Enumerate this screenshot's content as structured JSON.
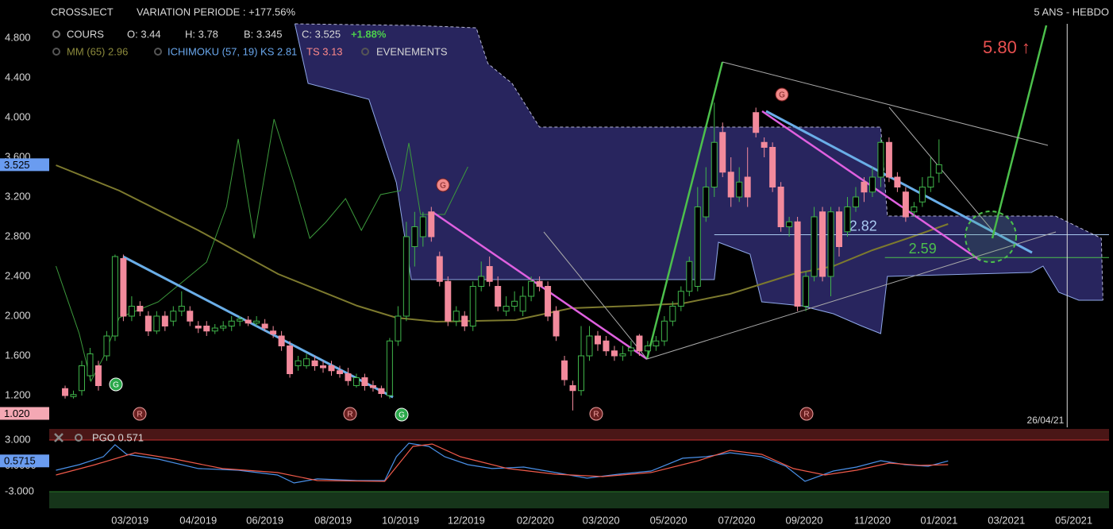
{
  "header": {
    "symbol": "CROSSJECT",
    "variation": "VARIATION PERIODE : +177.56%",
    "period": "5 ANS - HEBDO"
  },
  "legend": {
    "cours": "COURS",
    "open": "O: 3.44",
    "high": "H: 3.78",
    "low": "B: 3.345",
    "close": "C: 3.525",
    "change": "+1.88%",
    "mm": "MM (65) 2.96",
    "ichimoku": "ICHIMOKU (57, 19) KS 2.81",
    "ts": "TS 3.13",
    "events": "EVENEMENTS"
  },
  "chart_data": [
    {
      "type": "candlestick",
      "up_color": "#3fb44a",
      "down_color": "#f28a9c",
      "xlim": [
        -1.91,
        125.43
      ],
      "ylim": [
        0.88,
        5.184
      ],
      "xticks": [
        {
          "value": 7.8,
          "label": "03/2019"
        },
        {
          "value": 16.0,
          "label": "04/2019"
        },
        {
          "value": 24.0,
          "label": "06/2019"
        },
        {
          "value": 32.2,
          "label": "08/2019"
        },
        {
          "value": 40.3,
          "label": "10/2019"
        },
        {
          "value": 48.2,
          "label": "12/2019"
        },
        {
          "value": 56.5,
          "label": "02/2020"
        },
        {
          "value": 64.4,
          "label": "03/2020"
        },
        {
          "value": 72.5,
          "label": "05/2020"
        },
        {
          "value": 80.7,
          "label": "07/2020"
        },
        {
          "value": 88.8,
          "label": "09/2020"
        },
        {
          "value": 97.0,
          "label": "11/2020"
        },
        {
          "value": 105.0,
          "label": "01/2021"
        },
        {
          "value": 113.1,
          "label": "03/2021"
        },
        {
          "value": 121.2,
          "label": "05/2021"
        }
      ],
      "yticks": [
        {
          "value": 1.2,
          "label": "1.200"
        },
        {
          "value": 1.6,
          "label": "1.600"
        },
        {
          "value": 2.0,
          "label": "2.000"
        },
        {
          "value": 2.4,
          "label": "2.400"
        },
        {
          "value": 2.8,
          "label": "2.800"
        },
        {
          "value": 3.2,
          "label": "3.200"
        },
        {
          "value": 3.6,
          "label": "3.600"
        },
        {
          "value": 4.0,
          "label": "4.000"
        },
        {
          "value": 4.4,
          "label": "4.400"
        },
        {
          "value": 4.8,
          "label": "4.800"
        }
      ],
      "x": [
        0,
        1,
        2,
        3,
        4,
        5,
        6,
        7,
        8,
        9,
        10,
        11,
        12,
        13,
        14,
        15,
        16,
        17,
        18,
        19,
        20,
        21,
        22,
        23,
        24,
        25,
        26,
        27,
        28,
        29,
        30,
        31,
        32,
        33,
        34,
        35,
        36,
        37,
        38,
        39,
        40,
        41,
        42,
        43,
        44,
        45,
        46,
        47,
        48,
        49,
        50,
        51,
        52,
        53,
        54,
        55,
        56,
        57,
        58,
        59,
        60,
        61,
        62,
        63,
        64,
        65,
        66,
        67,
        68,
        69,
        70,
        71,
        72,
        73,
        74,
        75,
        76,
        77,
        78,
        79,
        80,
        81,
        82,
        83,
        84,
        85,
        86,
        87,
        88,
        89,
        90,
        91,
        92,
        93,
        94,
        95,
        96,
        97,
        98,
        99,
        100,
        101,
        102,
        103,
        104,
        105
      ],
      "open": [
        1.27,
        1.19,
        1.25,
        1.4,
        1.5,
        1.6,
        1.8,
        2.58,
        2.0,
        2.1,
        2.0,
        1.85,
        2.0,
        1.95,
        2.05,
        2.05,
        1.9,
        1.9,
        1.85,
        1.88,
        1.9,
        1.95,
        1.96,
        1.93,
        1.92,
        1.85,
        1.8,
        1.7,
        1.5,
        1.5,
        1.55,
        1.5,
        1.5,
        1.45,
        1.42,
        1.3,
        1.38,
        1.3,
        1.27,
        1.2,
        1.75,
        2.0,
        2.7,
        2.8,
        3.05,
        2.6,
        2.35,
        1.95,
        2.0,
        1.9,
        2.3,
        2.5,
        2.3,
        2.05,
        2.1,
        2.05,
        2.2,
        2.35,
        2.3,
        2.05,
        1.55,
        1.3,
        1.25,
        1.6,
        1.8,
        1.75,
        1.65,
        1.6,
        1.65,
        1.8,
        1.65,
        1.7,
        1.75,
        1.95,
        2.1,
        2.25,
        2.3,
        3.0,
        3.3,
        3.85,
        3.45,
        3.2,
        3.4,
        4.05,
        3.75,
        3.7,
        3.3,
        2.9,
        2.95,
        2.1,
        2.4,
        3.05,
        2.4,
        3.05,
        2.85,
        3.1,
        3.35,
        3.25,
        3.4,
        3.75,
        3.4,
        3.25,
        3.05,
        3.15,
        3.3,
        3.44
      ],
      "high": [
        1.3,
        1.25,
        1.55,
        1.68,
        1.55,
        1.85,
        2.62,
        2.62,
        2.2,
        2.15,
        2.05,
        2.05,
        2.05,
        2.1,
        2.25,
        2.1,
        1.95,
        1.95,
        1.92,
        1.95,
        2.0,
        2.0,
        2.0,
        2.0,
        1.97,
        1.9,
        1.85,
        1.75,
        1.6,
        1.62,
        1.6,
        1.55,
        1.55,
        1.5,
        1.48,
        1.42,
        1.42,
        1.35,
        1.3,
        1.78,
        2.1,
        2.95,
        3.05,
        3.05,
        3.1,
        2.65,
        2.4,
        2.1,
        2.05,
        2.35,
        2.55,
        2.6,
        2.4,
        2.2,
        2.25,
        2.3,
        2.4,
        2.4,
        2.35,
        2.1,
        1.6,
        1.35,
        1.9,
        1.9,
        1.85,
        1.8,
        1.7,
        1.7,
        1.75,
        1.82,
        1.75,
        1.8,
        2.0,
        2.15,
        2.3,
        2.6,
        3.3,
        3.5,
        4.15,
        3.95,
        3.6,
        3.5,
        3.7,
        4.1,
        3.8,
        3.75,
        3.35,
        3.0,
        3.0,
        2.45,
        3.1,
        3.1,
        3.1,
        3.1,
        3.2,
        3.3,
        3.4,
        3.5,
        3.8,
        3.8,
        3.45,
        3.3,
        3.15,
        3.4,
        3.6,
        3.78
      ],
      "low": [
        1.17,
        1.17,
        1.2,
        1.35,
        1.25,
        1.55,
        1.75,
        1.95,
        1.95,
        2.0,
        1.8,
        1.82,
        1.85,
        1.9,
        2.0,
        1.9,
        1.83,
        1.8,
        1.82,
        1.85,
        1.85,
        1.9,
        1.9,
        1.9,
        1.85,
        1.78,
        1.65,
        1.38,
        1.45,
        1.47,
        1.45,
        1.43,
        1.4,
        1.38,
        1.3,
        1.28,
        1.25,
        1.24,
        1.18,
        1.17,
        1.7,
        1.95,
        2.5,
        2.7,
        2.75,
        2.3,
        1.9,
        1.9,
        1.85,
        1.85,
        2.25,
        2.3,
        2.05,
        2.0,
        2.05,
        2.0,
        2.15,
        2.25,
        1.95,
        1.75,
        1.3,
        1.05,
        1.2,
        1.55,
        1.65,
        1.6,
        1.55,
        1.55,
        1.6,
        1.6,
        1.6,
        1.65,
        1.7,
        1.9,
        2.05,
        2.2,
        2.25,
        2.95,
        3.2,
        3.4,
        3.1,
        3.15,
        3.1,
        3.8,
        3.6,
        3.25,
        2.85,
        2.8,
        2.05,
        2.05,
        2.35,
        2.35,
        2.2,
        2.6,
        2.8,
        3.05,
        3.15,
        3.2,
        3.3,
        3.35,
        3.25,
        2.95,
        3.0,
        3.1,
        3.25,
        3.345
      ],
      "close": [
        1.2,
        1.21,
        1.5,
        1.62,
        1.3,
        1.8,
        2.6,
        2.0,
        2.1,
        2.05,
        1.85,
        2.0,
        1.9,
        2.05,
        2.1,
        1.95,
        1.88,
        1.85,
        1.88,
        1.9,
        1.95,
        1.97,
        1.93,
        1.95,
        1.88,
        1.82,
        1.7,
        1.42,
        1.55,
        1.57,
        1.5,
        1.48,
        1.45,
        1.42,
        1.35,
        1.38,
        1.3,
        1.28,
        1.22,
        1.75,
        2.0,
        2.8,
        2.9,
        3.0,
        2.8,
        2.35,
        1.95,
        2.05,
        1.9,
        2.3,
        2.4,
        2.35,
        2.1,
        2.1,
        2.15,
        2.2,
        2.35,
        2.3,
        2.0,
        1.8,
        1.36,
        1.25,
        1.6,
        1.8,
        1.72,
        1.65,
        1.6,
        1.62,
        1.68,
        1.65,
        1.7,
        1.75,
        1.95,
        2.1,
        2.25,
        2.55,
        3.1,
        3.3,
        3.75,
        3.45,
        3.2,
        3.35,
        3.2,
        3.85,
        3.7,
        3.3,
        2.9,
        2.95,
        2.1,
        2.4,
        3.0,
        2.4,
        3.05,
        2.7,
        3.1,
        3.2,
        3.25,
        3.4,
        3.75,
        3.4,
        3.3,
        3.0,
        3.1,
        3.3,
        3.4,
        3.525
      ],
      "cloud": {
        "color": "#2f2c6e",
        "upper": {
          "color": "#b8b8d8",
          "x": [
            27.6,
            41.8,
            49.4,
            50.8,
            53.7,
            57.0,
            98.0,
            98.8,
            119.0,
            124.5,
            124.7
          ],
          "values": [
            4.944,
            4.928,
            4.904,
            4.544,
            4.344,
            3.904,
            3.904,
            3.008,
            3.008,
            2.784,
            2.16
          ]
        },
        "lower": {
          "color": "#8fa8e8",
          "x": [
            27.6,
            29.2,
            36.5,
            39.8,
            41.6,
            78.0,
            78.5,
            82.3,
            83.7,
            88.5,
            92.3,
            95.6,
            98.0,
            98.8,
            116.1,
            117.5,
            119.4,
            121.8,
            124.7
          ],
          "values": [
            4.944,
            4.344,
            4.184,
            3.344,
            2.368,
            2.368,
            2.744,
            2.624,
            2.144,
            2.104,
            2.024,
            1.904,
            1.824,
            2.4,
            2.44,
            2.504,
            2.24,
            2.16,
            2.16
          ]
        }
      },
      "overlays": [
        {
          "color": "#7d7a2e",
          "x": [
            -1.1,
            6.5,
            16.0,
            25.6,
            35.1,
            39.8,
            44.6,
            54.1,
            60.8,
            68.4,
            74.2,
            79.9,
            87.5,
            92.3,
            97.0,
            101.8,
            106.1
          ],
          "values": [
            3.52,
            3.264,
            2.864,
            2.424,
            2.104,
            1.984,
            1.944,
            1.96,
            2.08,
            2.104,
            2.128,
            2.224,
            2.424,
            2.504,
            2.664,
            2.8,
            2.928
          ]
        },
        {
          "color": "#3c9a3c",
          "x": [
            -1.1,
            1.7,
            3.1,
            4.6,
            6.5,
            11.2,
            17.0,
            19.4,
            20.8,
            22.7,
            25.1,
            27.5,
            29.4,
            31.3,
            33.7,
            35.6,
            37.9,
            40.3,
            41.3,
            42.7,
            45.6,
            48.4
          ],
          "values": [
            2.504,
            1.824,
            1.344,
            1.584,
            1.984,
            2.144,
            2.544,
            3.104,
            3.784,
            2.784,
            3.984,
            3.344,
            2.784,
            2.944,
            3.184,
            2.864,
            3.224,
            3.264,
            3.744,
            3.024,
            3.024,
            3.504
          ]
        }
      ],
      "levels": [
        {
          "value": 2.82,
          "x_start": 78.0,
          "color": "#a8c8f0"
        },
        {
          "value": 2.59,
          "x_start": 98.5,
          "color": "#4cc04c"
        }
      ],
      "price_tags": [
        {
          "value": 3.525,
          "label": "3.525",
          "color": "#6a9cf0"
        },
        {
          "value": 1.02,
          "label": "1.020",
          "color": "#f4a8b4"
        }
      ],
      "annotation": "5.80 ↑",
      "date_marker": {
        "x": 120.4,
        "label": "26/04/21"
      },
      "events": [
        {
          "label": "G"
        },
        {
          "label": "G"
        },
        {
          "label": "G"
        },
        {
          "label": "G"
        },
        {
          "label": "R"
        },
        {
          "label": "R"
        },
        {
          "label": "R"
        },
        {
          "label": "R"
        }
      ]
    },
    {
      "type": "line",
      "title": "PGO 0.571",
      "ylim": [
        -4.94,
        4.29
      ],
      "yticks": [
        {
          "value": 3,
          "label": "3.000"
        },
        {
          "value": 0,
          "label": "0.0000"
        },
        {
          "value": -3,
          "label": "-3.000"
        }
      ],
      "price_tag": {
        "value": 0.5715,
        "label": "0.5715",
        "color": "#6a9cf0"
      },
      "series": [
        {
          "color": "#4a90e8",
          "x": [
            -1.1,
            1.7,
            4.6,
            6.0,
            7.4,
            11.2,
            16.0,
            20.8,
            25.5,
            27.5,
            30.3,
            35.1,
            38.4,
            39.8,
            41.3,
            43.7,
            45.6,
            48.4,
            51.3,
            55.1,
            58.9,
            62.7,
            66.5,
            70.4,
            74.2,
            77.0,
            79.9,
            83.7,
            86.6,
            88.9,
            92.3,
            95.1,
            98.0,
            100.9,
            103.7,
            106.1
          ],
          "values": [
            -0.51,
            0.14,
            1.06,
            2.45,
            1.34,
            0.78,
            -0.32,
            -0.51,
            -1.06,
            -1.99,
            -1.52,
            -1.71,
            -1.71,
            1.06,
            2.63,
            2.26,
            1.06,
            0.14,
            -0.32,
            -0.14,
            -0.78,
            -1.43,
            -0.97,
            -0.6,
            0.88,
            1.06,
            1.52,
            1.06,
            -0.05,
            -1.8,
            -0.6,
            -0.14,
            0.6,
            0.14,
            -0.05,
            0.57
          ]
        },
        {
          "color": "#f05a4a",
          "x": [
            -1.1,
            3.6,
            8.4,
            13.2,
            18.9,
            25.5,
            30.3,
            38.4,
            41.8,
            44.1,
            47.5,
            53.2,
            58.9,
            64.6,
            70.4,
            76.1,
            79.9,
            83.7,
            87.5,
            91.3,
            95.1,
            99.0,
            102.8,
            106.1
          ],
          "values": [
            -1.06,
            0.14,
            1.52,
            0.78,
            -0.32,
            -0.78,
            -1.71,
            -1.8,
            2.26,
            2.54,
            1.06,
            -0.32,
            -0.97,
            -1.25,
            -0.78,
            0.6,
            1.8,
            1.34,
            -0.32,
            -1.06,
            -0.51,
            0.32,
            0.05,
            0.14
          ]
        }
      ]
    }
  ]
}
